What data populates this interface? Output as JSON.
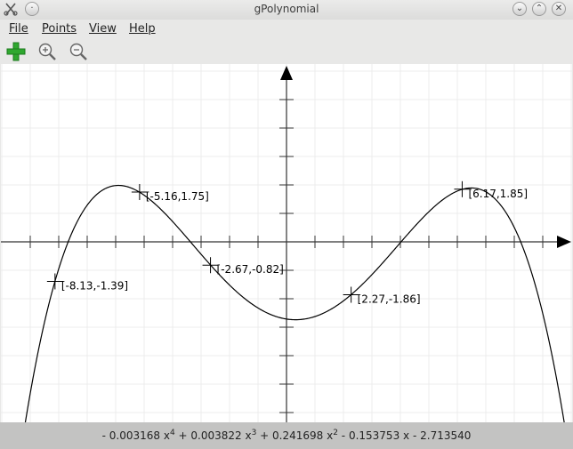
{
  "window": {
    "title": "gPolynomial",
    "app_icon": "scissors-icon",
    "controls": [
      "minimize",
      "maximize",
      "close"
    ]
  },
  "menu": {
    "file": "File",
    "points": "Points",
    "view": "View",
    "help": "Help"
  },
  "toolbar": {
    "add_icon": "add-point-icon",
    "zoom_in_icon": "zoom-in-icon",
    "zoom_out_icon": "zoom-out-icon"
  },
  "points": [
    {
      "label": "[-5.16,1.75]",
      "x": -5.16,
      "y": 1.75
    },
    {
      "label": "[6.17,1.85]",
      "x": 6.17,
      "y": 1.85
    },
    {
      "label": "[-2.67,-0.82]",
      "x": -2.67,
      "y": -0.82
    },
    {
      "label": "[-8.13,-1.39]",
      "x": -8.13,
      "y": -1.39
    },
    {
      "label": "[2.27,-1.86]",
      "x": 2.27,
      "y": -1.86
    }
  ],
  "polynomial": {
    "coefficients": [
      -2.71354,
      -0.153753,
      0.241698,
      0.003822,
      -0.003168
    ],
    "terms": {
      "t4_coef": "- 0.003168",
      "t4_var": "x",
      "t4_exp": "4",
      "t3_coef": "+ 0.003822",
      "t3_var": "x",
      "t3_exp": "3",
      "t2_coef": "+ 0.241698",
      "t2_var": "x",
      "t2_exp": "2",
      "t1_coef": "- 0.153753",
      "t1_var": "x",
      "t0": "- 2.713540"
    }
  },
  "colors": {
    "curve": "#000000",
    "grid": "#ececec",
    "axes": "#333333",
    "add_icon": "#2fa82f"
  }
}
